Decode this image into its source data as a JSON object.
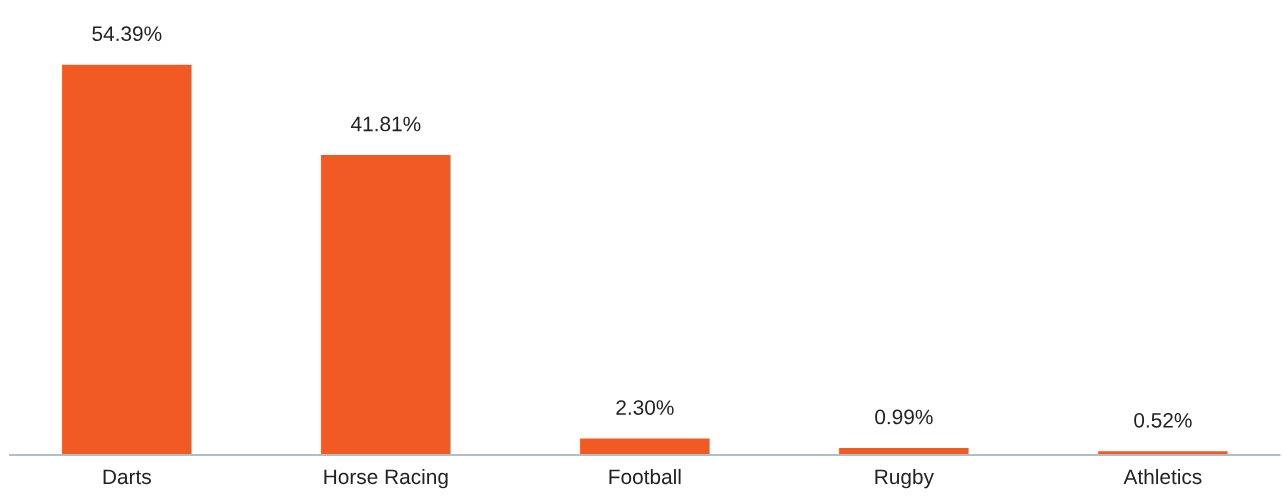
{
  "chart_data": {
    "type": "bar",
    "categories": [
      "Darts",
      "Horse Racing",
      "Football",
      "Rugby",
      "Athletics"
    ],
    "values": [
      54.39,
      41.81,
      2.3,
      0.99,
      0.52
    ],
    "value_labels": [
      "54.39%",
      "41.81%",
      "2.30%",
      "0.99%",
      "0.52%"
    ],
    "color": "#f15a22",
    "tick_labels": "x",
    "grid": false,
    "legend": false
  }
}
